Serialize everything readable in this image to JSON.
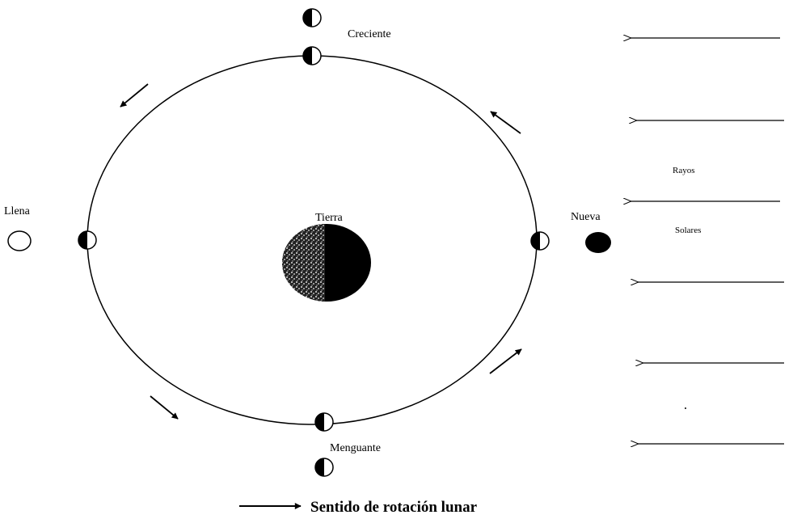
{
  "labels": {
    "creciente": "Creciente",
    "llena": "Llena",
    "tierra": "Tierra",
    "nueva": "Nueva",
    "menguante": "Menguante",
    "rayos": "Rayos",
    "solares": "Solares"
  },
  "legend": "Sentido de rotación lunar"
}
